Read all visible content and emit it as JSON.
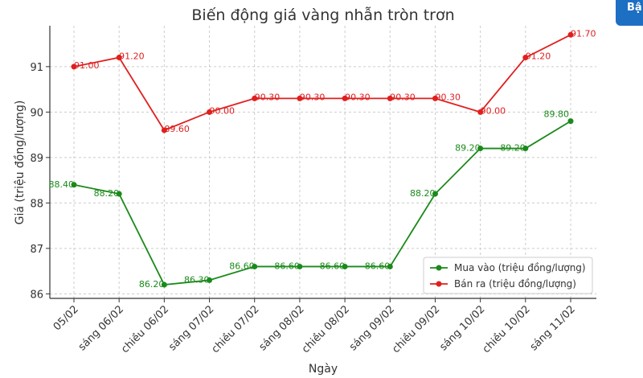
{
  "corner_button": {
    "label": "Bậ"
  },
  "chart_data": {
    "type": "line",
    "title": "Biến động giá vàng nhẫn tròn trơn",
    "xlabel": "Ngày",
    "ylabel": "Giá (triệu đồng/lượng)",
    "categories": [
      "05/02",
      "sáng 06/02",
      "chiều 06/02",
      "sáng 07/02",
      "chiều 07/02",
      "sáng 08/02",
      "chiều 08/02",
      "sáng 09/02",
      "chiều 09/02",
      "sáng 10/02",
      "chiều 10/02",
      "sáng 11/02"
    ],
    "ylim": [
      85.9,
      91.9
    ],
    "yticks": [
      "86",
      "87",
      "88",
      "89",
      "90",
      "91"
    ],
    "grid": true,
    "legend_position": "lower-right",
    "series": [
      {
        "name": "Mua vào (triệu đồng/lượng)",
        "color": "#1a8a1a",
        "values": [
          88.4,
          88.2,
          86.2,
          86.3,
          86.6,
          86.6,
          86.6,
          86.6,
          88.2,
          89.2,
          89.2,
          89.8
        ],
        "labels": [
          "88.40",
          "88.20",
          "86.20",
          "86.30",
          "86.60",
          "86.60",
          "86.60",
          "86.60",
          "88.20",
          "89.20",
          "89.20",
          "89.80"
        ]
      },
      {
        "name": "Bán ra (triệu đồng/lượng)",
        "color": "#e01f1f",
        "values": [
          91.0,
          91.2,
          89.6,
          90.0,
          90.3,
          90.3,
          90.3,
          90.3,
          90.3,
          90.0,
          91.2,
          91.7
        ],
        "labels": [
          "91.00",
          "91.20",
          "89.60",
          "90.00",
          "90.30",
          "90.30",
          "90.30",
          "90.30",
          "90.30",
          "90.00",
          "91.20",
          "91.70"
        ]
      }
    ]
  }
}
